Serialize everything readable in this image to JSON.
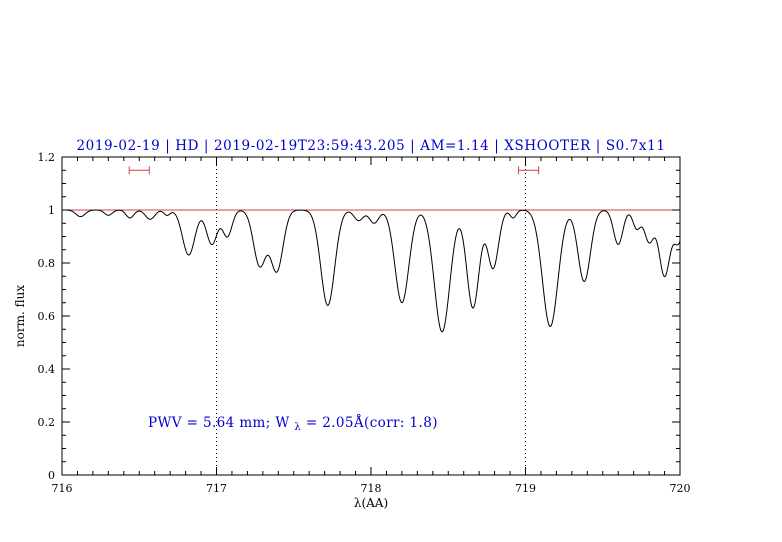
{
  "colors": {
    "accent_blue": "#0000cd",
    "marker_red": "#cc4444",
    "spectrum_black": "#000000",
    "background": "#ffffff"
  },
  "chart_data": {
    "type": "line",
    "title": "2019-02-19 | HD | 2019-02-19T23:59:43.205 | AM=1.14 | XSHOOTER | S0.7x11",
    "xlabel": "λ(AA)",
    "ylabel": "norm. flux",
    "xlim": [
      716,
      720
    ],
    "ylim": [
      0,
      1.2
    ],
    "xticks": [
      716,
      717,
      718,
      719,
      720
    ],
    "xtick_labels": [
      "716",
      "717",
      "718",
      "719",
      "720"
    ],
    "yticks": [
      0,
      0.2,
      0.4,
      0.6,
      0.8,
      1,
      1.2
    ],
    "ytick_labels": [
      "0",
      "0.2",
      "0.4",
      "0.6",
      "0.8",
      "1",
      "1.2"
    ],
    "legend": "none",
    "grid": "dotted vertical guide lines",
    "annotation": {
      "prefix": "PWV = 5.64 mm; W",
      "subscript": "λ",
      "suffix": " = 2.05Å(corr: 1.8)"
    },
    "continuum_level": 1.0,
    "reference_lines": {
      "horizontal_y": 1.0,
      "vertical_x": [
        717,
        719
      ]
    },
    "range_markers": [
      {
        "x_center": 716.5,
        "half_width": 0.065,
        "y": 1.15
      },
      {
        "x_center": 719.02,
        "half_width": 0.065,
        "y": 1.15
      }
    ],
    "sample_count": 900,
    "absorption_lines": [
      {
        "center": 716.12,
        "depth": 0.025,
        "sigma": 0.03
      },
      {
        "center": 716.3,
        "depth": 0.02,
        "sigma": 0.025
      },
      {
        "center": 716.44,
        "depth": 0.03,
        "sigma": 0.025
      },
      {
        "center": 716.57,
        "depth": 0.035,
        "sigma": 0.03
      },
      {
        "center": 716.68,
        "depth": 0.02,
        "sigma": 0.02
      },
      {
        "center": 716.82,
        "depth": 0.17,
        "sigma": 0.04
      },
      {
        "center": 716.97,
        "depth": 0.13,
        "sigma": 0.035
      },
      {
        "center": 717.07,
        "depth": 0.1,
        "sigma": 0.03
      },
      {
        "center": 717.28,
        "depth": 0.21,
        "sigma": 0.04
      },
      {
        "center": 717.39,
        "depth": 0.23,
        "sigma": 0.04
      },
      {
        "center": 717.72,
        "depth": 0.36,
        "sigma": 0.045
      },
      {
        "center": 717.92,
        "depth": 0.04,
        "sigma": 0.03
      },
      {
        "center": 718.02,
        "depth": 0.05,
        "sigma": 0.03
      },
      {
        "center": 718.2,
        "depth": 0.35,
        "sigma": 0.045
      },
      {
        "center": 718.46,
        "depth": 0.46,
        "sigma": 0.05
      },
      {
        "center": 718.66,
        "depth": 0.37,
        "sigma": 0.04
      },
      {
        "center": 718.79,
        "depth": 0.22,
        "sigma": 0.035
      },
      {
        "center": 718.92,
        "depth": 0.03,
        "sigma": 0.02
      },
      {
        "center": 719.16,
        "depth": 0.44,
        "sigma": 0.05
      },
      {
        "center": 719.38,
        "depth": 0.27,
        "sigma": 0.04
      },
      {
        "center": 719.6,
        "depth": 0.13,
        "sigma": 0.03
      },
      {
        "center": 719.72,
        "depth": 0.07,
        "sigma": 0.025
      },
      {
        "center": 719.8,
        "depth": 0.12,
        "sigma": 0.03
      },
      {
        "center": 719.9,
        "depth": 0.25,
        "sigma": 0.035
      },
      {
        "center": 719.99,
        "depth": 0.12,
        "sigma": 0.03
      }
    ]
  }
}
